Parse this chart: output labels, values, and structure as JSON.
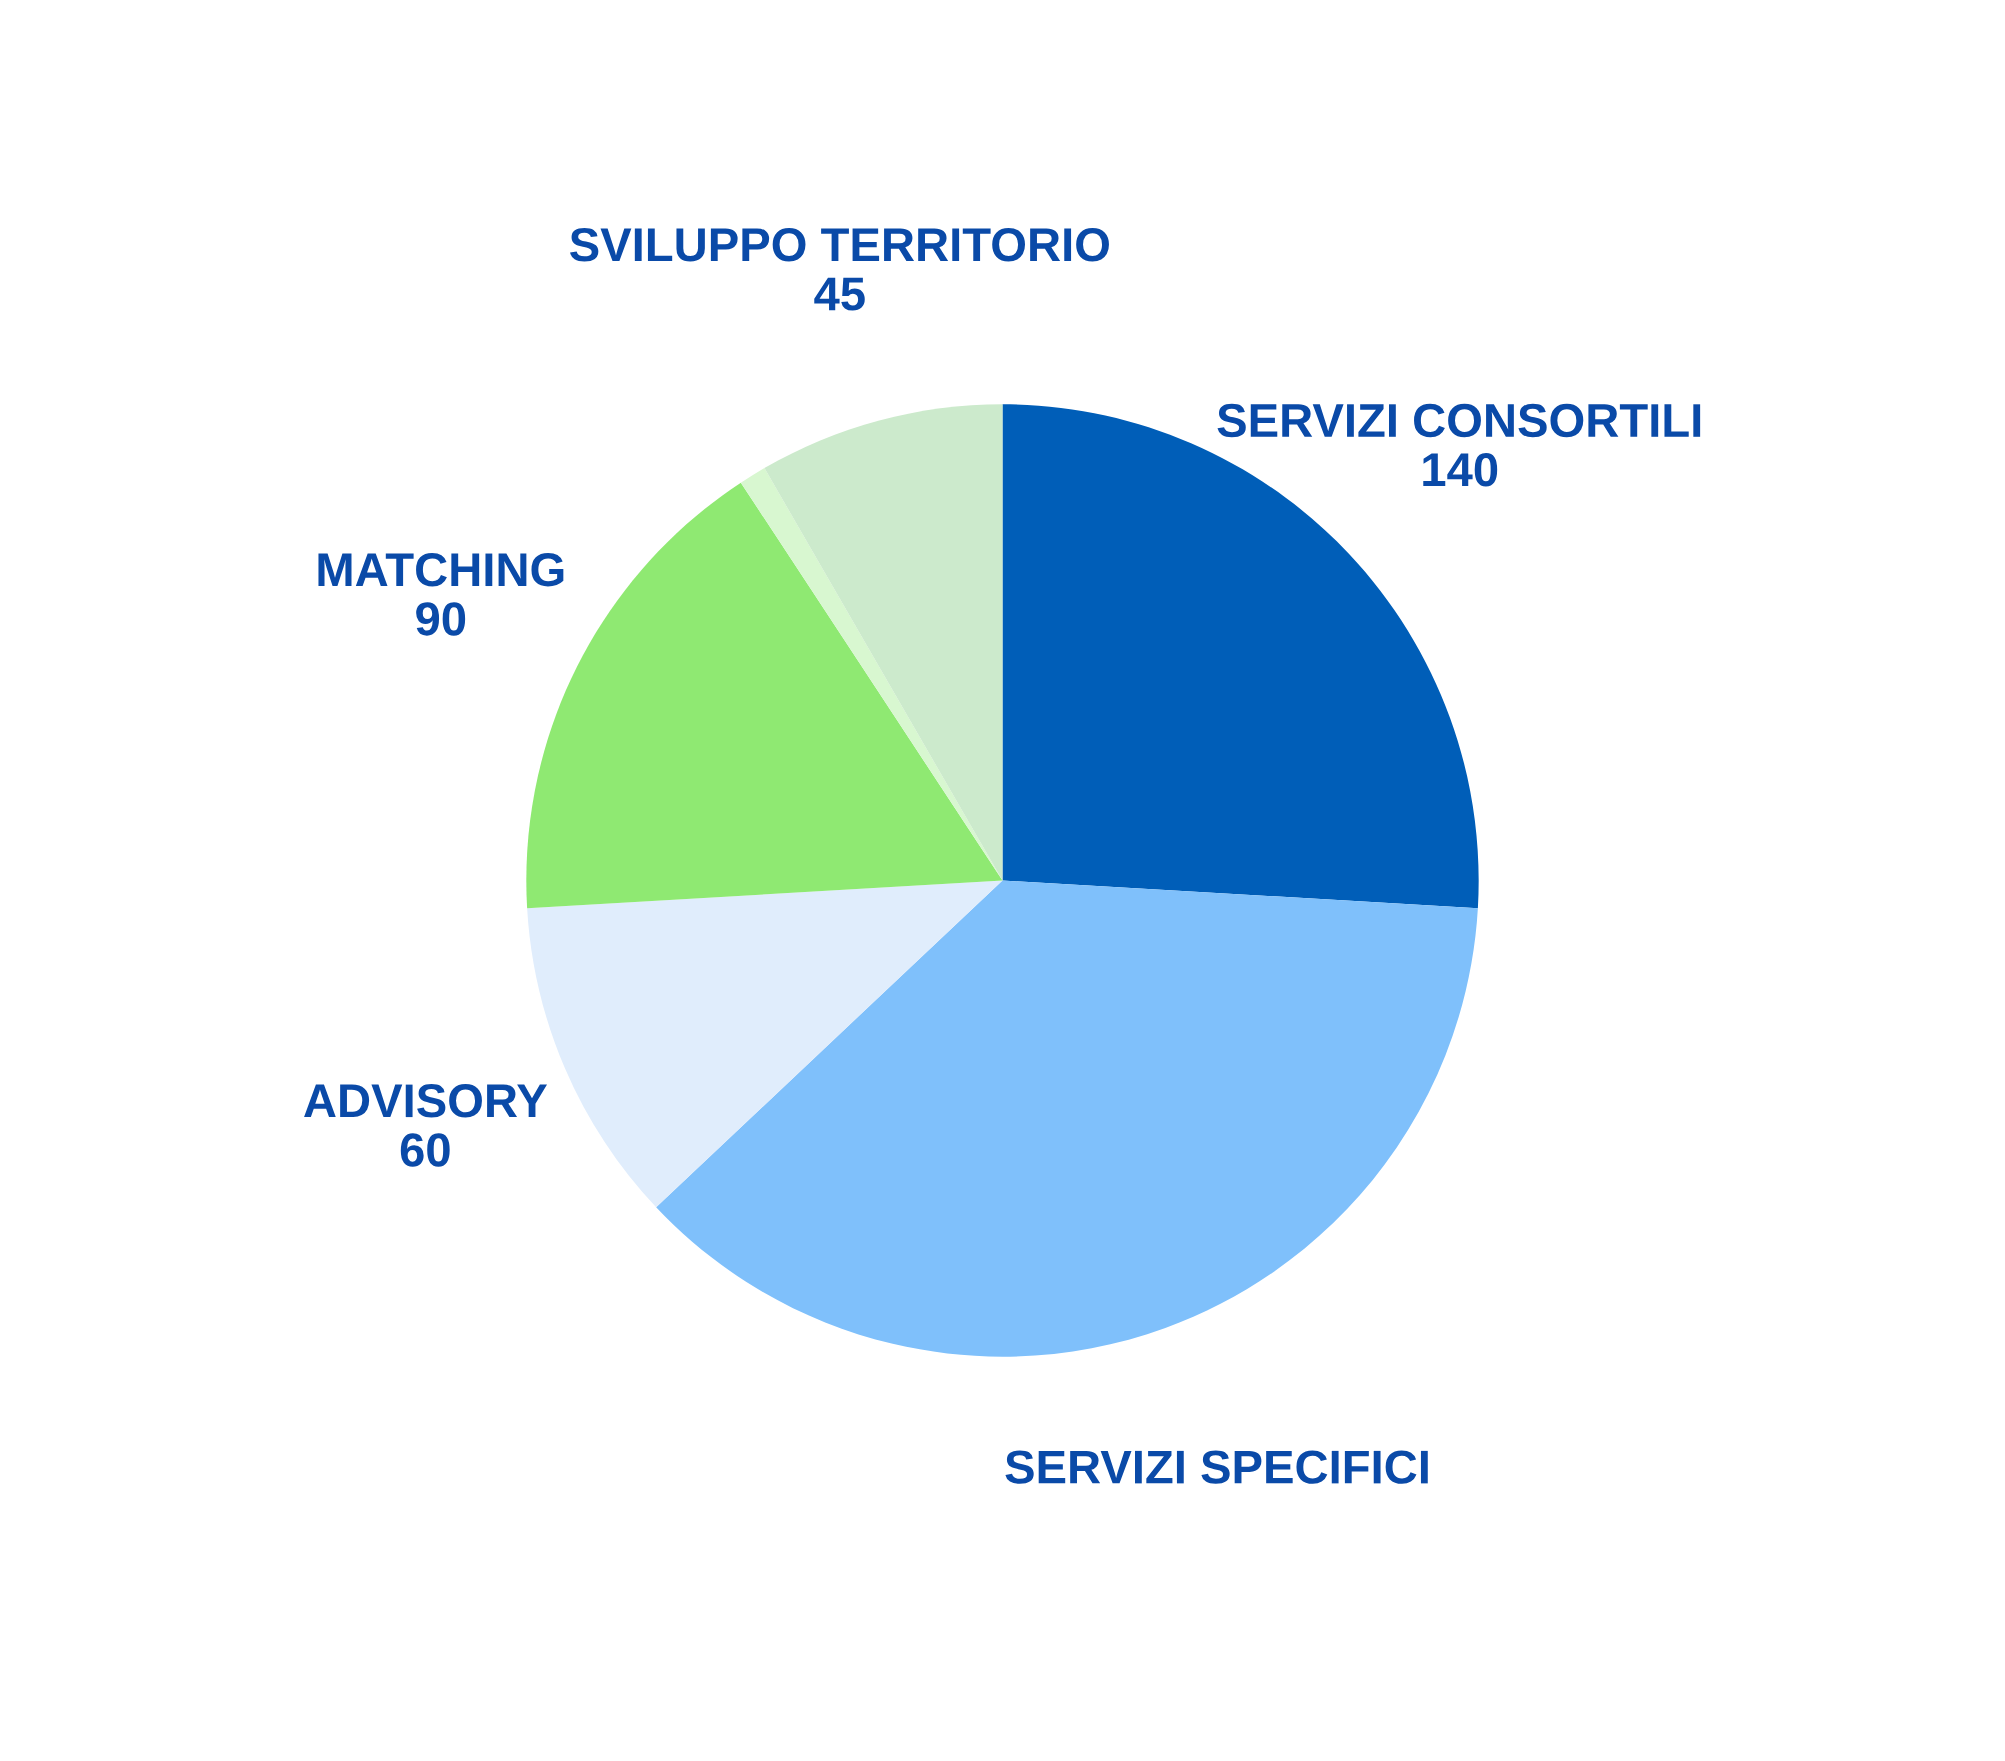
{
  "chart_data": {
    "type": "pie",
    "categories": [
      "SERVIZI CONSORTILI",
      "SERVIZI SPECIFICI",
      "ADVISORY",
      "MATCHING",
      null,
      "SVILUPPO TERRITORIO"
    ],
    "values": [
      140,
      200,
      60,
      90,
      5,
      45
    ],
    "value_labels": [
      "140",
      null,
      "60",
      "90",
      null,
      "45"
    ],
    "colors": [
      "#005eb8",
      "#7fc0fb",
      "#e0edfc",
      "#8fe972",
      "#d8f7d0",
      "#cceacc"
    ]
  }
}
